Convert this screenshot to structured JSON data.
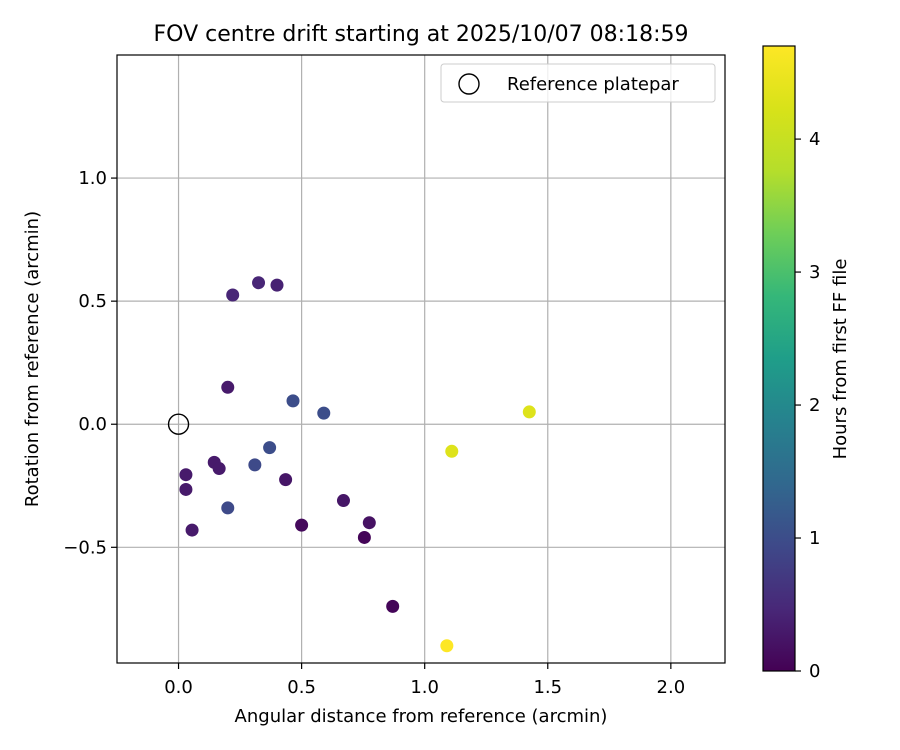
{
  "chart_data": {
    "type": "scatter",
    "title": "FOV centre drift starting at 2025/10/07 08:18:59",
    "xlabel": "Angular distance from reference (arcmin)",
    "ylabel": "Rotation from reference (arcmin)",
    "xlim": [
      -0.25,
      2.22
    ],
    "ylim": [
      -0.97,
      1.5
    ],
    "xticks": [
      0.0,
      0.5,
      1.0,
      1.5,
      2.0
    ],
    "xtick_labels": [
      "0.0",
      "0.5",
      "1.0",
      "1.5",
      "2.0"
    ],
    "yticks": [
      -0.5,
      0.0,
      0.5,
      1.0
    ],
    "ytick_labels": [
      "−0.5",
      "0.0",
      "0.5",
      "1.0"
    ],
    "grid": true,
    "legend": {
      "position": "top-right",
      "label": "Reference platepar"
    },
    "reference": {
      "x": 0.0,
      "y": 0.0
    },
    "colorbar": {
      "label": "Hours from first FF file",
      "range": [
        0,
        4.7
      ],
      "ticks": [
        0,
        1,
        2,
        3,
        4
      ],
      "tick_labels": [
        "0",
        "1",
        "2",
        "3",
        "4"
      ],
      "colormap": "viridis"
    },
    "points": [
      {
        "x": 0.22,
        "y": 0.525,
        "hours": 0.45
      },
      {
        "x": 0.325,
        "y": 0.575,
        "hours": 0.45
      },
      {
        "x": 0.4,
        "y": 0.565,
        "hours": 0.4
      },
      {
        "x": 0.2,
        "y": 0.15,
        "hours": 0.3
      },
      {
        "x": 0.465,
        "y": 0.095,
        "hours": 1.0
      },
      {
        "x": 0.59,
        "y": 0.045,
        "hours": 1.0
      },
      {
        "x": 0.37,
        "y": -0.095,
        "hours": 1.0
      },
      {
        "x": 0.31,
        "y": -0.165,
        "hours": 0.95
      },
      {
        "x": 0.2,
        "y": -0.34,
        "hours": 0.95
      },
      {
        "x": 0.145,
        "y": -0.155,
        "hours": 0.3
      },
      {
        "x": 0.165,
        "y": -0.18,
        "hours": 0.3
      },
      {
        "x": 0.03,
        "y": -0.205,
        "hours": 0.3
      },
      {
        "x": 0.03,
        "y": -0.265,
        "hours": 0.3
      },
      {
        "x": 0.055,
        "y": -0.43,
        "hours": 0.3
      },
      {
        "x": 0.435,
        "y": -0.225,
        "hours": 0.25
      },
      {
        "x": 0.5,
        "y": -0.41,
        "hours": 0.1
      },
      {
        "x": 0.67,
        "y": -0.31,
        "hours": 0.25
      },
      {
        "x": 0.775,
        "y": -0.4,
        "hours": 0.2
      },
      {
        "x": 0.755,
        "y": -0.46,
        "hours": 0.05
      },
      {
        "x": 0.87,
        "y": -0.74,
        "hours": 0.05
      },
      {
        "x": 1.11,
        "y": -0.11,
        "hours": 4.3
      },
      {
        "x": 1.425,
        "y": 0.05,
        "hours": 4.3
      },
      {
        "x": 1.09,
        "y": -0.9,
        "hours": 4.7
      }
    ]
  }
}
